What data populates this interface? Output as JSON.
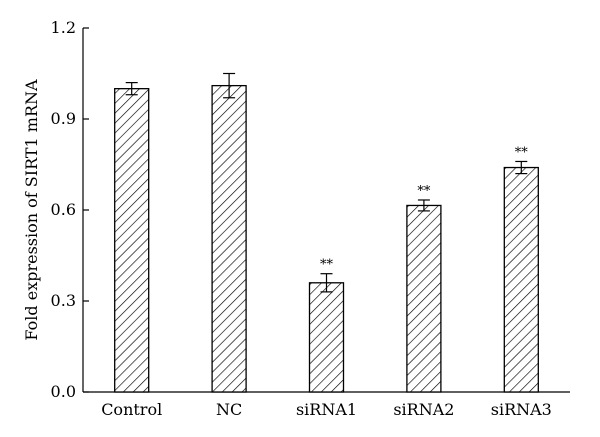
{
  "chart_data": {
    "type": "bar",
    "title": "",
    "xlabel": "",
    "ylabel": "Fold expression of SIRT1 mRNA",
    "categories": [
      "Control",
      "NC",
      "siRNA1",
      "siRNA2",
      "siRNA3"
    ],
    "values": [
      1.0,
      1.01,
      0.36,
      0.615,
      0.74
    ],
    "errors": [
      0.02,
      0.04,
      0.03,
      0.018,
      0.02
    ],
    "annotations": [
      "",
      "",
      "**",
      "**",
      "**"
    ],
    "ylim": [
      0.0,
      1.2
    ],
    "yticks": [
      0.0,
      0.3,
      0.6,
      0.9,
      1.2
    ],
    "ytick_labels": [
      "0.0",
      "0.3",
      "0.6",
      "0.9",
      "1.2"
    ],
    "grid": false,
    "bar_style": "diagonal-hatch",
    "colors": {
      "bar_edge": "#000000",
      "hatch": "#000000",
      "background": "#ffffff"
    }
  }
}
